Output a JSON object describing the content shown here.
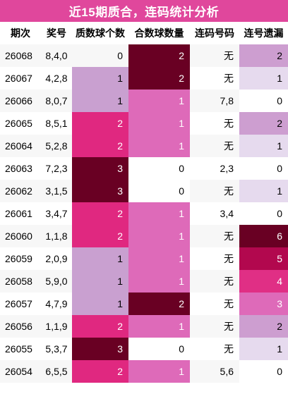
{
  "title": "近15期质合，连码统计分析",
  "headers": [
    "期次",
    "奖号",
    "质数球个数",
    "合数球数量",
    "连码号码",
    "连号遗漏"
  ],
  "rows": [
    {
      "period": "26068",
      "award": "8,4,0",
      "prime_count": "0",
      "composite_count": "2",
      "consecutive": "无",
      "miss": "2"
    },
    {
      "period": "26067",
      "award": "4,2,8",
      "prime_count": "1",
      "composite_count": "2",
      "consecutive": "无",
      "miss": "1"
    },
    {
      "period": "26066",
      "award": "8,0,7",
      "prime_count": "1",
      "composite_count": "1",
      "consecutive": "7,8",
      "miss": "0"
    },
    {
      "period": "26065",
      "award": "8,5,1",
      "prime_count": "2",
      "composite_count": "1",
      "consecutive": "无",
      "miss": "2"
    },
    {
      "period": "26064",
      "award": "5,2,8",
      "prime_count": "2",
      "composite_count": "1",
      "consecutive": "无",
      "miss": "1"
    },
    {
      "period": "26063",
      "award": "7,2,3",
      "prime_count": "3",
      "composite_count": "0",
      "consecutive": "2,3",
      "miss": "0"
    },
    {
      "period": "26062",
      "award": "3,1,5",
      "prime_count": "3",
      "composite_count": "0",
      "consecutive": "无",
      "miss": "1"
    },
    {
      "period": "26061",
      "award": "3,4,7",
      "prime_count": "2",
      "composite_count": "1",
      "consecutive": "3,4",
      "miss": "0"
    },
    {
      "period": "26060",
      "award": "1,1,8",
      "prime_count": "2",
      "composite_count": "1",
      "consecutive": "无",
      "miss": "6"
    },
    {
      "period": "26059",
      "award": "2,0,9",
      "prime_count": "1",
      "composite_count": "1",
      "consecutive": "无",
      "miss": "5"
    },
    {
      "period": "26058",
      "award": "5,9,0",
      "prime_count": "1",
      "composite_count": "1",
      "consecutive": "无",
      "miss": "4"
    },
    {
      "period": "26057",
      "award": "4,7,9",
      "prime_count": "1",
      "composite_count": "2",
      "consecutive": "无",
      "miss": "3"
    },
    {
      "period": "26056",
      "award": "1,1,9",
      "prime_count": "2",
      "composite_count": "1",
      "consecutive": "无",
      "miss": "2"
    },
    {
      "period": "26055",
      "award": "5,3,7",
      "prime_count": "3",
      "composite_count": "0",
      "consecutive": "无",
      "miss": "1"
    },
    {
      "period": "26054",
      "award": "6,5,5",
      "prime_count": "2",
      "composite_count": "1",
      "consecutive": "5,6",
      "miss": "0"
    }
  ],
  "colors": {
    "title_bg": "#e0479c",
    "prime_scale": {
      "0": "#f7f7f7",
      "1": "#c9a0d0",
      "2": "#e02880",
      "3": "#690023"
    },
    "composite_scale": {
      "0": "#ffffff",
      "1": "#de6ab9",
      "2": "#690023"
    },
    "miss_scale": {
      "0": "#ffffff",
      "1": "#e6daee",
      "2": "#cd9ed0",
      "3": "#de6ab9",
      "4": "#e02f85",
      "5": "#b2084e",
      "6": "#690023"
    }
  }
}
